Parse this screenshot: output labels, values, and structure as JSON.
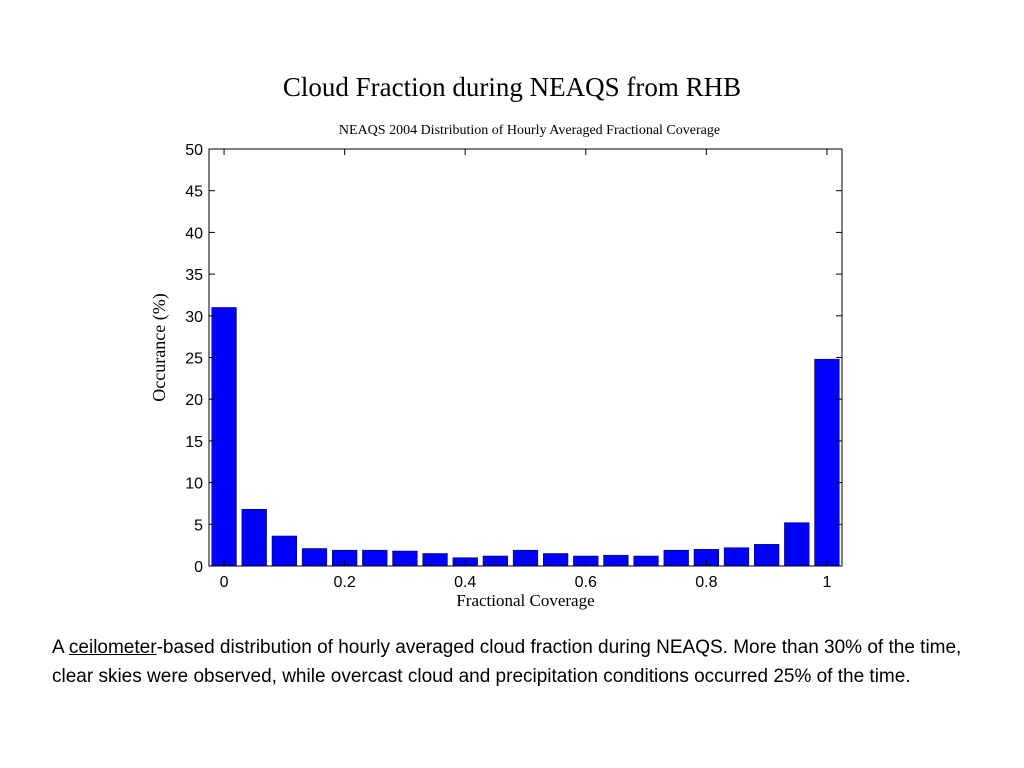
{
  "slide": {
    "title": "Cloud Fraction during NEAQS from RHB",
    "caption": {
      "prefix": "A ",
      "link_text": "ceilometer",
      "rest": "-based distribution of hourly averaged cloud fraction during NEAQS. More than 30% of the time, clear skies were observed, while overcast cloud and precipitation conditions occurred 25% of the time."
    }
  },
  "chart_data": {
    "type": "bar",
    "title": "NEAQS 2004 Distribution of Hourly Averaged Fractional Coverage",
    "xlabel": "Fractional Coverage",
    "ylabel": "Occurance (%)",
    "x": [
      0,
      0.05,
      0.1,
      0.15,
      0.2,
      0.25,
      0.3,
      0.35,
      0.4,
      0.45,
      0.5,
      0.55,
      0.6,
      0.65,
      0.7,
      0.75,
      0.8,
      0.85,
      0.9,
      0.95,
      1.0
    ],
    "values": [
      31.0,
      6.8,
      3.6,
      2.1,
      1.9,
      1.9,
      1.8,
      1.5,
      1.0,
      1.2,
      1.9,
      1.5,
      1.2,
      1.3,
      1.2,
      1.9,
      2.0,
      2.2,
      2.6,
      5.2,
      24.8
    ],
    "xlim": [
      -0.025,
      1.025
    ],
    "ylim": [
      0,
      50
    ],
    "xticks": [
      0,
      0.2,
      0.4,
      0.6,
      0.8,
      1
    ],
    "xtick_labels": [
      "0",
      "0.2",
      "0.4",
      "0.6",
      "0.8",
      "1"
    ],
    "yticks": [
      0,
      5,
      10,
      15,
      20,
      25,
      30,
      35,
      40,
      45,
      50
    ],
    "ytick_labels": [
      "0",
      "5",
      "10",
      "15",
      "20",
      "25",
      "30",
      "35",
      "40",
      "45",
      "50"
    ],
    "bar_color": "#0000ff",
    "grid": false,
    "legend": "none"
  }
}
